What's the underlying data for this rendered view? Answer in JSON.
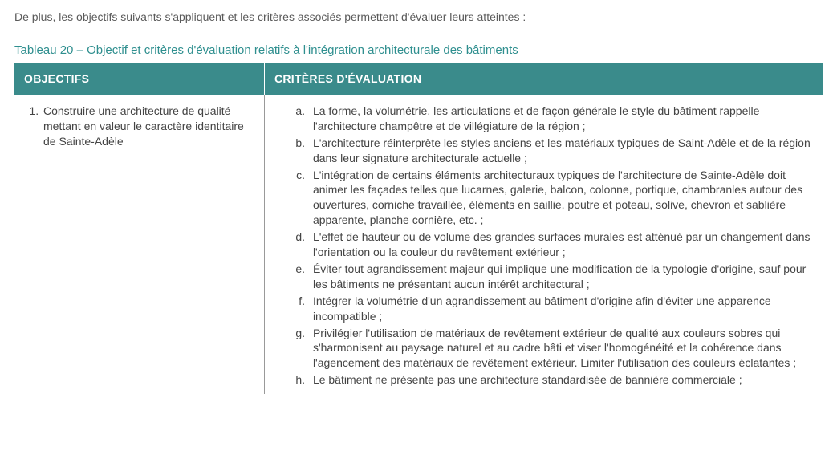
{
  "intro": "De plus, les objectifs suivants s'appliquent et les critères associés permettent d'évaluer leurs atteintes :",
  "caption": "Tableau 20 – Objectif et critères d'évaluation relatifs à l'intégration architecturale des bâtiments",
  "headers": {
    "objectives": "OBJECTIFS",
    "criteria": "CRITÈRES D'ÉVALUATION"
  },
  "rows": [
    {
      "objective": "Construire une architecture de qualité mettant en valeur le caractère identitaire de Sainte-Adèle",
      "criteria": [
        "La forme, la volumétrie, les articulations et de façon générale le style du bâtiment rappelle l'architecture champêtre et de villégiature de la région ;",
        "L'architecture réinterprète les styles anciens et les matériaux typiques de Saint-Adèle et de la région dans leur signature architecturale actuelle ;",
        "L'intégration de certains éléments architecturaux typiques de l'architecture de Sainte-Adèle doit animer les façades telles que lucarnes, galerie, balcon, colonne, portique, chambranles autour des ouvertures, corniche travaillée, éléments en saillie, poutre et poteau, solive, chevron et sablière apparente, planche cornière, etc. ;",
        "L'effet de hauteur ou de volume des grandes surfaces murales est atténué par un changement dans l'orientation ou la couleur du revêtement extérieur ;",
        "Éviter tout agrandissement majeur qui implique une modification de la typologie d'origine, sauf pour les bâtiments ne présentant aucun intérêt architectural ;",
        "Intégrer la volumétrie d'un agrandissement au bâtiment d'origine afin d'éviter une apparence incompatible ;",
        "Privilégier l'utilisation de matériaux de revêtement extérieur de qualité aux couleurs sobres qui s'harmonisent au paysage naturel et au cadre bâti et viser l'homogénéité et la cohérence dans l'agencement des matériaux de revêtement extérieur. Limiter l'utilisation des couleurs éclatantes ;",
        "Le bâtiment ne présente pas une architecture standardisée de bannière commerciale ;"
      ]
    }
  ],
  "colors": {
    "header_bg": "#3a8b8b",
    "header_text": "#ffffff",
    "caption_text": "#2f8f8f",
    "body_text": "#444444",
    "intro_text": "#5a5a5a",
    "border": "#000000",
    "divider": "#999999",
    "background": "#ffffff"
  },
  "typography": {
    "font_family": "Arial",
    "body_size_pt": 11,
    "caption_size_pt": 11,
    "header_size_pt": 11
  },
  "layout": {
    "col_obj_width_pct": 30,
    "col_crit_width_pct": 70
  }
}
